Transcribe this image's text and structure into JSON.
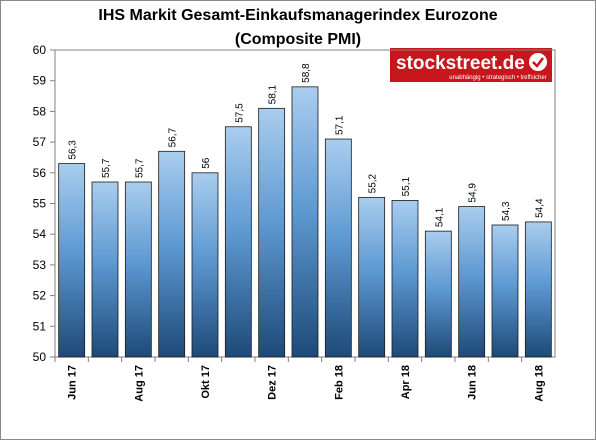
{
  "chart_data": {
    "type": "bar",
    "title": "IHS Markit Gesamt-Einkaufsmanagerindex Eurozone",
    "subtitle": "(Composite PMI)",
    "logo": {
      "name": "stockstreet.de",
      "tagline": "unabhängig • strategisch • treffsicher"
    },
    "categories": [
      "Jun 17",
      null,
      "Aug 17",
      null,
      "Okt 17",
      null,
      "Dez 17",
      null,
      "Feb 18",
      null,
      "Apr 18",
      null,
      "Jun 18",
      null,
      "Aug 18"
    ],
    "values": [
      56.3,
      55.7,
      55.7,
      56.7,
      56,
      57.5,
      58.1,
      58.8,
      57.1,
      55.2,
      55.1,
      54.1,
      54.9,
      54.3,
      54.4
    ],
    "value_labels": [
      "56,3",
      "55,7",
      "55,7",
      "56,7",
      "56",
      "57,5",
      "58,1",
      "58,8",
      "57,1",
      "55,2",
      "55,1",
      "54,1",
      "54,9",
      "54,3",
      "54,4"
    ],
    "color": "#2a5d8f",
    "ylim": [
      50,
      60
    ],
    "yticks": [
      50,
      51,
      52,
      53,
      54,
      55,
      56,
      57,
      58,
      59,
      60
    ]
  }
}
